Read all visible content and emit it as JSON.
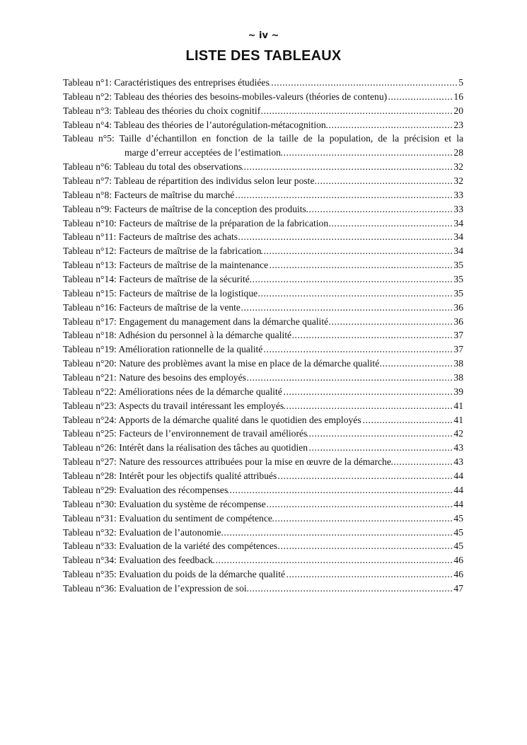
{
  "header": {
    "page_number": "~ iv ~",
    "title": "LISTE DES TABLEAUX"
  },
  "entries": [
    {
      "label": "Tableau n°1: Caractéristiques des entreprises étudiées",
      "page": "5"
    },
    {
      "label": "Tableau n°2: Tableau des théories des besoins-mobiles-valeurs (théories de contenu)",
      "page": "16"
    },
    {
      "label": "Tableau n°3: Tableau des théories du choix cognitif",
      "page": "20"
    },
    {
      "label": "Tableau n°4: Tableau des théories de l’autorégulation-métacognition",
      "page": "23"
    },
    {
      "label": "Tableau n°5: Taille d’échantillon en fonction de la taille de la population, de la précision et la",
      "label_cont": "marge d’erreur acceptées de l’estimation",
      "page": "28"
    },
    {
      "label": "Tableau n°6: Tableau du total des observations",
      "page": "32"
    },
    {
      "label": "Tableau n°7: Tableau de répartition des individus selon leur poste",
      "page": "32"
    },
    {
      "label": "Tableau n°8: Facteurs de maîtrise du marché",
      "page": "33"
    },
    {
      "label": "Tableau n°9: Facteurs de maîtrise de la conception des produits",
      "page": "33"
    },
    {
      "label": "Tableau n°10: Facteurs de maîtrise de la préparation de la fabrication",
      "page": "34"
    },
    {
      "label": "Tableau n°11: Facteurs de maîtrise des achats",
      "page": "34"
    },
    {
      "label": "Tableau n°12: Facteurs de maîtrise de la fabrication",
      "page": "34"
    },
    {
      "label": "Tableau n°13: Facteurs de maîtrise de la maintenance",
      "page": "35"
    },
    {
      "label": "Tableau n°14: Facteurs de maîtrise de la sécurité",
      "page": "35"
    },
    {
      "label": "Tableau n°15: Facteurs de maîtrise de la logistique",
      "page": "35"
    },
    {
      "label": "Tableau n°16: Facteurs de maîtrise de la vente",
      "page": "36"
    },
    {
      "label": "Tableau n°17: Engagement du management dans la démarche qualité",
      "page": "36"
    },
    {
      "label": "Tableau n°18: Adhésion du personnel à la démarche qualité",
      "page": "37"
    },
    {
      "label": "Tableau n°19: Amélioration rationnelle de la qualité",
      "page": "37"
    },
    {
      "label": "Tableau n°20: Nature des problèmes avant la mise en place de la démarche qualité",
      "page": "38"
    },
    {
      "label": "Tableau n°21: Nature des besoins des employés",
      "page": "38"
    },
    {
      "label": "Tableau n°22: Améliorations nées de la démarche qualité",
      "page": "39"
    },
    {
      "label": "Tableau n°23: Aspects du travail intéressant les employés",
      "page": "41"
    },
    {
      "label": "Tableau n°24: Apports de la démarche qualité dans le quotidien des employés",
      "page": "41"
    },
    {
      "label": "Tableau n°25: Facteurs de l’environnement de travail améliorés",
      "page": "42"
    },
    {
      "label": "Tableau n°26: Intérêt dans la réalisation des tâches au quotidien",
      "page": "43"
    },
    {
      "label": "Tableau n°27: Nature des ressources attribuées pour la mise en œuvre de la démarche",
      "page": "43"
    },
    {
      "label": "Tableau n°28: Intérêt pour les objectifs qualité attribués",
      "page": "44"
    },
    {
      "label": "Tableau n°29: Evaluation des récompenses",
      "page": "44"
    },
    {
      "label": "Tableau n°30: Evaluation du système de récompense",
      "page": "44"
    },
    {
      "label": "Tableau n°31: Evaluation du sentiment de compétence",
      "page": "45"
    },
    {
      "label": "Tableau n°32: Evaluation de l’autonomie",
      "page": "45"
    },
    {
      "label": "Tableau n°33: Evaluation de la variété des compétences",
      "page": "45"
    },
    {
      "label": "Tableau n°34: Evaluation des feedback",
      "page": "46"
    },
    {
      "label": "Tableau n°35: Evaluation du poids de la démarche qualité",
      "page": "46"
    },
    {
      "label": "Tableau n°36: Evaluation de l’expression de soi",
      "page": "47"
    }
  ]
}
